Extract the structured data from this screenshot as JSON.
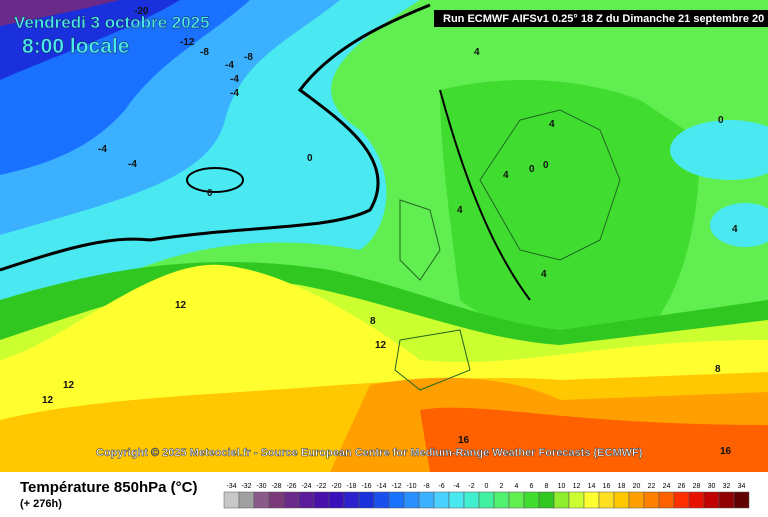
{
  "header": {
    "date": "Vendredi 3 octobre 2025",
    "time": "8:00 locale",
    "run": "Run ECMWF AIFSv1 0.25° 18 Z du Dimanche 21 septembre 20"
  },
  "map": {
    "contour_labels": [
      "-20",
      "-12",
      "-8",
      "-8",
      "-4",
      "-4",
      "-4",
      "-4",
      "-4",
      "0",
      "0",
      "4",
      "4",
      "4",
      "0",
      "0",
      "4",
      "0",
      "4",
      "4",
      "12",
      "8",
      "12",
      "12",
      "12",
      "8",
      "16",
      "16"
    ]
  },
  "copyright": "Copyright © 2025 Meteociel.fr - Source European Centre for Medium-Range Weather Forecasts (ECMWF)",
  "footer": {
    "title": "Température 850hPa (°C)",
    "subtitle": "(+ 276h)"
  },
  "legend": {
    "labels": [
      -34,
      -32,
      -30,
      -28,
      -26,
      -24,
      -22,
      -20,
      -18,
      -16,
      -14,
      -12,
      -10,
      -8,
      -6,
      -4,
      -2,
      0,
      2,
      4,
      6,
      8,
      10,
      12,
      14,
      16,
      18,
      20,
      22,
      24,
      26,
      28,
      30,
      32,
      34
    ],
    "colors": [
      "#c8c8c8",
      "#a0a0a0",
      "#8a5a8a",
      "#7a3a7a",
      "#6a2a8a",
      "#5a1a9a",
      "#4a10aa",
      "#3a10bb",
      "#2a20cc",
      "#1a30dd",
      "#1a50ee",
      "#1a70ff",
      "#2a90ff",
      "#3ab0ff",
      "#4ad0ff",
      "#4ae8f0",
      "#40f0d0",
      "#40f0a0",
      "#50f070",
      "#60ee50",
      "#40dd30",
      "#30c820",
      "#90ee30",
      "#ccff30",
      "#ffff30",
      "#ffe020",
      "#ffc800",
      "#ffa000",
      "#ff8000",
      "#ff6000",
      "#ff3000",
      "#e81000",
      "#c00000",
      "#900000",
      "#600000"
    ]
  }
}
